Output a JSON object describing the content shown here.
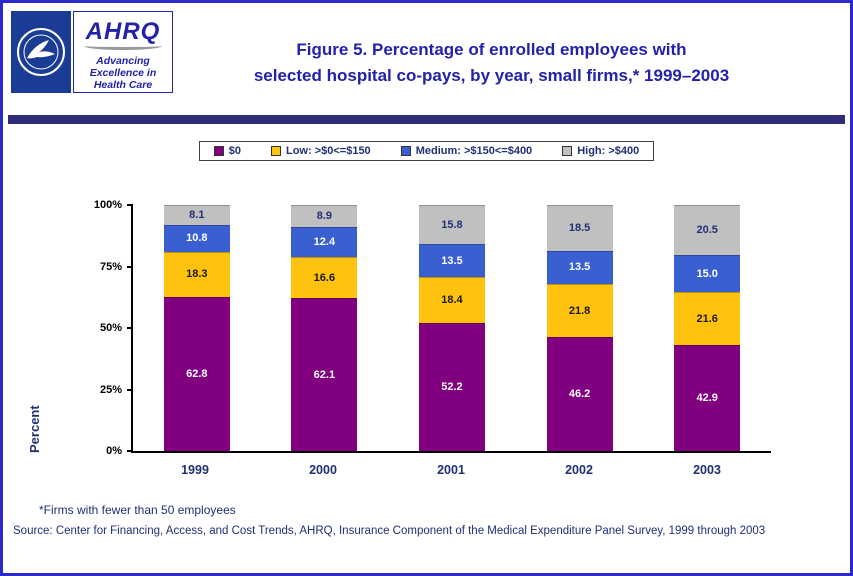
{
  "header": {
    "ahrq_word": "AHRQ",
    "ahrq_tagline_line1": "Advancing",
    "ahrq_tagline_line2": "Excellence in",
    "ahrq_tagline_line3": "Health Care",
    "title_line1": "Figure 5. Percentage of enrolled employees with",
    "title_line2": "selected hospital co-pays, by year, small firms,* 1999–2003"
  },
  "colors": {
    "title_blue": "#2222AA",
    "navy_text": "#1F3075",
    "page_border": "#2929CC",
    "divider": "#2E2E78"
  },
  "chart_data": {
    "type": "bar",
    "stacked": true,
    "title": "Figure 5. Percentage of enrolled employees with selected hospital co-pays, by year, small firms,* 1999–2003",
    "categories": [
      "1999",
      "2000",
      "2001",
      "2002",
      "2003"
    ],
    "series": [
      {
        "name": "$0",
        "color": "#800080",
        "label_color": "#FFFFFF",
        "values": [
          62.8,
          62.1,
          52.2,
          46.2,
          42.9
        ]
      },
      {
        "name": "Low: >$0<=$150",
        "color": "#FFC20E",
        "label_color": "#1A1A1A",
        "values": [
          18.3,
          16.6,
          18.4,
          21.8,
          21.6
        ]
      },
      {
        "name": "Medium: >$150<=$400",
        "color": "#3A5FD1",
        "label_color": "#FFFFFF",
        "values": [
          10.8,
          12.4,
          13.5,
          13.5,
          15.0
        ]
      },
      {
        "name": "High: >$400",
        "color": "#C0C0C0",
        "label_color": "#1F3075",
        "values": [
          8.1,
          8.9,
          15.8,
          18.5,
          20.5
        ]
      }
    ],
    "xlabel": "",
    "ylabel": "Percent",
    "ylim": [
      0,
      100
    ],
    "yticks": [
      "0%",
      "25%",
      "50%",
      "75%",
      "100%"
    ],
    "grid": false,
    "legend_position": "top"
  },
  "footnotes": {
    "note": "*Firms with fewer than 50 employees",
    "source": "Source: Center for Financing, Access, and Cost Trends, AHRQ, Insurance Component of the Medical Expenditure Panel Survey, 1999 through 2003"
  }
}
